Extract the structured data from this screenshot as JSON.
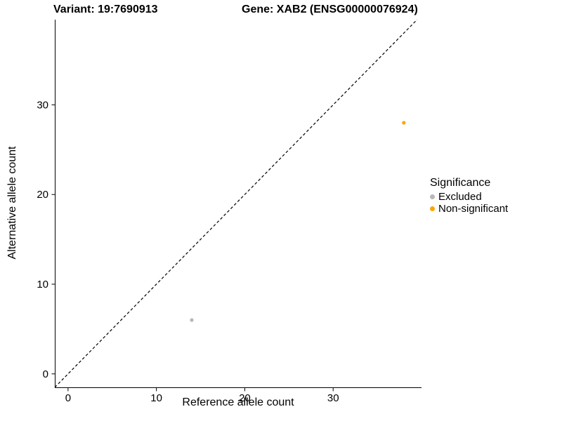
{
  "chart_data": {
    "type": "scatter",
    "title_left": "Variant: 19:7690913",
    "title_right": "Gene: XAB2 (ENSG00000076924)",
    "xlabel": "Reference allele count",
    "ylabel": "Alternative allele count",
    "xlim": [
      -1.5,
      40
    ],
    "ylim": [
      -1.5,
      39.5
    ],
    "xticks": [
      0,
      10,
      20,
      30
    ],
    "yticks": [
      0,
      10,
      20,
      30
    ],
    "grid": false,
    "reference_line": {
      "type": "identity y=x",
      "style": "dashed",
      "color": "#000000"
    },
    "legend": {
      "title": "Significance",
      "position": "right",
      "items": [
        {
          "label": "Excluded",
          "color": "#b8b8b8"
        },
        {
          "label": "Non-significant",
          "color": "#FFA500"
        }
      ]
    },
    "series": [
      {
        "name": "Excluded",
        "color": "#b8b8b8",
        "points": [
          {
            "x": 14,
            "y": 6
          }
        ]
      },
      {
        "name": "Non-significant",
        "color": "#FFA500",
        "points": [
          {
            "x": 38,
            "y": 28
          }
        ]
      }
    ]
  }
}
